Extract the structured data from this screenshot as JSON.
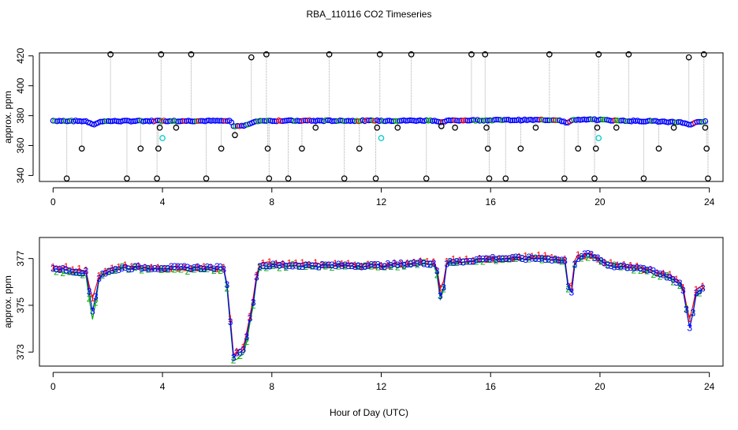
{
  "title": "RBA_110116  CO2 Timeseries",
  "xlabel": "Hour of Day (UTC)",
  "chart_data": [
    {
      "type": "scatter",
      "panel": "top",
      "ylabel": "approx. ppm",
      "xlim": [
        -0.5,
        24.5
      ],
      "ylim": [
        336,
        422
      ],
      "x_ticks": [
        0,
        4,
        8,
        12,
        16,
        20,
        24
      ],
      "y_ticks": [
        340,
        360,
        380,
        400,
        420
      ],
      "grid": false,
      "legend": "none",
      "colors": {
        "raw": "#000000",
        "filtered": "#0000ff",
        "flagged": "#00cccc",
        "trace": "#aaaaaa",
        "mid": "#00aa00",
        "low": "#ff0000"
      },
      "baseline": [
        {
          "x": 0.0,
          "y": 376.6
        },
        {
          "x": 1.2,
          "y": 376.3
        },
        {
          "x": 1.5,
          "y": 374.2
        },
        {
          "x": 1.8,
          "y": 376.3
        },
        {
          "x": 4.0,
          "y": 376.5
        },
        {
          "x": 6.5,
          "y": 376.5
        },
        {
          "x": 6.6,
          "y": 372.8
        },
        {
          "x": 7.0,
          "y": 373.5
        },
        {
          "x": 7.3,
          "y": 375.5
        },
        {
          "x": 7.6,
          "y": 376.6
        },
        {
          "x": 12.0,
          "y": 376.6
        },
        {
          "x": 14.0,
          "y": 376.8
        },
        {
          "x": 14.2,
          "y": 375.2
        },
        {
          "x": 14.4,
          "y": 376.8
        },
        {
          "x": 16.0,
          "y": 377.0
        },
        {
          "x": 18.5,
          "y": 377.2
        },
        {
          "x": 18.8,
          "y": 375.0
        },
        {
          "x": 19.0,
          "y": 377.2
        },
        {
          "x": 19.8,
          "y": 377.3
        },
        {
          "x": 21.0,
          "y": 376.5
        },
        {
          "x": 22.0,
          "y": 376.3
        },
        {
          "x": 23.0,
          "y": 375.5
        },
        {
          "x": 23.3,
          "y": 374.0
        },
        {
          "x": 23.6,
          "y": 375.8
        },
        {
          "x": 23.8,
          "y": 376.0
        }
      ],
      "outliers": [
        {
          "x": 0.5,
          "y": 338
        },
        {
          "x": 1.05,
          "y": 358
        },
        {
          "x": 2.1,
          "y": 421
        },
        {
          "x": 2.7,
          "y": 338
        },
        {
          "x": 3.2,
          "y": 358
        },
        {
          "x": 3.8,
          "y": 338
        },
        {
          "x": 3.85,
          "y": 358
        },
        {
          "x": 3.9,
          "y": 372
        },
        {
          "x": 3.95,
          "y": 421
        },
        {
          "x": 4.5,
          "y": 372
        },
        {
          "x": 5.05,
          "y": 421
        },
        {
          "x": 5.6,
          "y": 338
        },
        {
          "x": 6.15,
          "y": 358
        },
        {
          "x": 6.65,
          "y": 367
        },
        {
          "x": 7.25,
          "y": 419
        },
        {
          "x": 7.8,
          "y": 421
        },
        {
          "x": 7.85,
          "y": 358
        },
        {
          "x": 7.9,
          "y": 338
        },
        {
          "x": 8.6,
          "y": 338
        },
        {
          "x": 9.1,
          "y": 358
        },
        {
          "x": 9.6,
          "y": 372
        },
        {
          "x": 10.1,
          "y": 421
        },
        {
          "x": 10.65,
          "y": 338
        },
        {
          "x": 11.2,
          "y": 358
        },
        {
          "x": 11.8,
          "y": 338
        },
        {
          "x": 11.85,
          "y": 372
        },
        {
          "x": 11.95,
          "y": 421
        },
        {
          "x": 12.6,
          "y": 372
        },
        {
          "x": 13.1,
          "y": 421
        },
        {
          "x": 13.65,
          "y": 338
        },
        {
          "x": 14.2,
          "y": 373
        },
        {
          "x": 14.7,
          "y": 372
        },
        {
          "x": 15.3,
          "y": 421
        },
        {
          "x": 15.8,
          "y": 421
        },
        {
          "x": 15.85,
          "y": 372
        },
        {
          "x": 15.9,
          "y": 358
        },
        {
          "x": 15.95,
          "y": 338
        },
        {
          "x": 16.55,
          "y": 338
        },
        {
          "x": 17.1,
          "y": 358
        },
        {
          "x": 17.65,
          "y": 372
        },
        {
          "x": 18.15,
          "y": 421
        },
        {
          "x": 18.7,
          "y": 338
        },
        {
          "x": 19.2,
          "y": 358
        },
        {
          "x": 19.8,
          "y": 338
        },
        {
          "x": 19.85,
          "y": 358
        },
        {
          "x": 19.9,
          "y": 372
        },
        {
          "x": 19.95,
          "y": 421
        },
        {
          "x": 20.6,
          "y": 372
        },
        {
          "x": 21.05,
          "y": 421
        },
        {
          "x": 21.6,
          "y": 338
        },
        {
          "x": 22.15,
          "y": 358
        },
        {
          "x": 22.7,
          "y": 372
        },
        {
          "x": 23.25,
          "y": 419
        },
        {
          "x": 23.8,
          "y": 421
        },
        {
          "x": 23.85,
          "y": 372
        },
        {
          "x": 23.9,
          "y": 358
        },
        {
          "x": 23.95,
          "y": 338
        }
      ],
      "flagged": [
        {
          "x": 4.0,
          "y": 365
        },
        {
          "x": 12.0,
          "y": 365
        },
        {
          "x": 19.95,
          "y": 365
        }
      ]
    },
    {
      "type": "line",
      "panel": "bottom",
      "ylabel": "approx. ppm",
      "xlim": [
        -0.5,
        24.5
      ],
      "ylim": [
        372.4,
        377.9
      ],
      "x_ticks": [
        0,
        4,
        8,
        12,
        16,
        20,
        24
      ],
      "y_ticks": [
        373,
        375,
        377
      ],
      "grid": false,
      "legend": "none",
      "series": [
        {
          "name": "1",
          "color": "#ff0000",
          "values": [
            {
              "x": 0.0,
              "y": 376.6
            },
            {
              "x": 0.5,
              "y": 376.6
            },
            {
              "x": 1.2,
              "y": 376.5
            },
            {
              "x": 1.45,
              "y": 375.2
            },
            {
              "x": 1.7,
              "y": 376.4
            },
            {
              "x": 2.5,
              "y": 376.7
            },
            {
              "x": 4.0,
              "y": 376.6
            },
            {
              "x": 6.3,
              "y": 376.6
            },
            {
              "x": 6.6,
              "y": 372.9
            },
            {
              "x": 7.0,
              "y": 373.3
            },
            {
              "x": 7.3,
              "y": 375.2
            },
            {
              "x": 7.5,
              "y": 376.8
            },
            {
              "x": 9.0,
              "y": 376.8
            },
            {
              "x": 12.0,
              "y": 376.7
            },
            {
              "x": 13.5,
              "y": 376.9
            },
            {
              "x": 14.0,
              "y": 376.8
            },
            {
              "x": 14.2,
              "y": 375.4
            },
            {
              "x": 14.4,
              "y": 376.9
            },
            {
              "x": 16.0,
              "y": 377.0
            },
            {
              "x": 18.0,
              "y": 377.1
            },
            {
              "x": 18.75,
              "y": 376.9
            },
            {
              "x": 18.9,
              "y": 375.2
            },
            {
              "x": 19.1,
              "y": 377.1
            },
            {
              "x": 19.6,
              "y": 377.2
            },
            {
              "x": 20.3,
              "y": 376.8
            },
            {
              "x": 21.5,
              "y": 376.6
            },
            {
              "x": 22.5,
              "y": 376.3
            },
            {
              "x": 23.0,
              "y": 376.0
            },
            {
              "x": 23.3,
              "y": 374.3
            },
            {
              "x": 23.5,
              "y": 375.6
            },
            {
              "x": 23.8,
              "y": 375.9
            }
          ]
        },
        {
          "name": "2",
          "color": "#00aa00",
          "values": [
            {
              "x": 0.0,
              "y": 376.5
            },
            {
              "x": 0.5,
              "y": 376.4
            },
            {
              "x": 1.2,
              "y": 376.3
            },
            {
              "x": 1.45,
              "y": 374.3
            },
            {
              "x": 1.7,
              "y": 376.2
            },
            {
              "x": 2.5,
              "y": 376.6
            },
            {
              "x": 4.0,
              "y": 376.5
            },
            {
              "x": 6.3,
              "y": 376.5
            },
            {
              "x": 6.6,
              "y": 372.6
            },
            {
              "x": 7.0,
              "y": 373.0
            },
            {
              "x": 7.3,
              "y": 374.8
            },
            {
              "x": 7.5,
              "y": 376.6
            },
            {
              "x": 9.0,
              "y": 376.7
            },
            {
              "x": 12.0,
              "y": 376.6
            },
            {
              "x": 13.5,
              "y": 376.8
            },
            {
              "x": 14.0,
              "y": 376.7
            },
            {
              "x": 14.2,
              "y": 374.9
            },
            {
              "x": 14.4,
              "y": 376.8
            },
            {
              "x": 16.0,
              "y": 376.9
            },
            {
              "x": 18.0,
              "y": 377.0
            },
            {
              "x": 18.75,
              "y": 376.8
            },
            {
              "x": 18.9,
              "y": 374.9
            },
            {
              "x": 19.1,
              "y": 377.0
            },
            {
              "x": 19.6,
              "y": 377.1
            },
            {
              "x": 20.3,
              "y": 376.7
            },
            {
              "x": 21.5,
              "y": 376.5
            },
            {
              "x": 22.5,
              "y": 376.2
            },
            {
              "x": 23.0,
              "y": 375.8
            },
            {
              "x": 23.3,
              "y": 374.0
            },
            {
              "x": 23.5,
              "y": 375.4
            },
            {
              "x": 23.8,
              "y": 375.7
            }
          ]
        },
        {
          "name": "3",
          "color": "#0000ff",
          "values": [
            {
              "x": 0.0,
              "y": 376.6
            },
            {
              "x": 0.5,
              "y": 376.5
            },
            {
              "x": 1.2,
              "y": 376.4
            },
            {
              "x": 1.45,
              "y": 374.7
            },
            {
              "x": 1.7,
              "y": 376.3
            },
            {
              "x": 2.5,
              "y": 376.6
            },
            {
              "x": 4.0,
              "y": 376.6
            },
            {
              "x": 6.3,
              "y": 376.6
            },
            {
              "x": 6.6,
              "y": 372.8
            },
            {
              "x": 7.0,
              "y": 373.2
            },
            {
              "x": 7.3,
              "y": 375.0
            },
            {
              "x": 7.5,
              "y": 376.7
            },
            {
              "x": 9.0,
              "y": 376.7
            },
            {
              "x": 12.0,
              "y": 376.7
            },
            {
              "x": 13.5,
              "y": 376.8
            },
            {
              "x": 14.0,
              "y": 376.8
            },
            {
              "x": 14.2,
              "y": 375.1
            },
            {
              "x": 14.4,
              "y": 376.8
            },
            {
              "x": 16.0,
              "y": 377.0
            },
            {
              "x": 18.0,
              "y": 377.0
            },
            {
              "x": 18.75,
              "y": 376.9
            },
            {
              "x": 18.9,
              "y": 375.0
            },
            {
              "x": 19.1,
              "y": 377.0
            },
            {
              "x": 19.6,
              "y": 377.2
            },
            {
              "x": 20.3,
              "y": 376.7
            },
            {
              "x": 21.5,
              "y": 376.6
            },
            {
              "x": 22.5,
              "y": 376.2
            },
            {
              "x": 23.0,
              "y": 375.9
            },
            {
              "x": 23.3,
              "y": 373.9
            },
            {
              "x": 23.5,
              "y": 375.5
            },
            {
              "x": 23.8,
              "y": 375.8
            }
          ]
        }
      ]
    }
  ]
}
